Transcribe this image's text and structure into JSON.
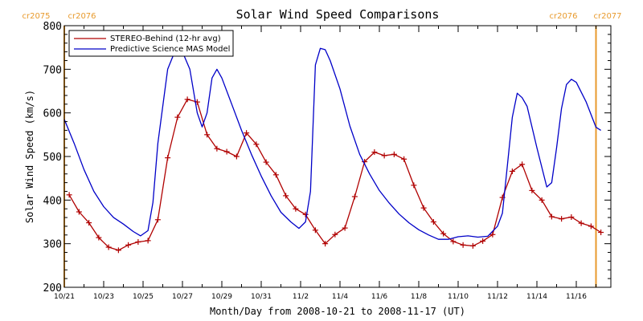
{
  "chart_data": {
    "type": "line",
    "title": "Solar Wind Speed Comparisons",
    "xlabel": "Month/Day from 2008-10-21 to 2008-11-17 (UT)",
    "ylabel": "Solar Wind Speed (km/s)",
    "xlim": [
      "2008-10-21",
      "2008-11-17"
    ],
    "ylim": [
      200,
      800
    ],
    "yticks": [
      200,
      300,
      400,
      500,
      600,
      700,
      800
    ],
    "xtick_labels": [
      "10/21",
      "10/23",
      "10/25",
      "10/27",
      "10/29",
      "10/31",
      "11/2",
      "11/4",
      "11/6",
      "11/8",
      "11/10",
      "11/12",
      "11/14",
      "11/16"
    ],
    "xtick_dates": [
      "2008-10-21",
      "2008-10-23",
      "2008-10-25",
      "2008-10-27",
      "2008-10-29",
      "2008-10-31",
      "2008-11-02",
      "2008-11-04",
      "2008-11-06",
      "2008-11-08",
      "2008-11-10",
      "2008-11-12",
      "2008-11-14",
      "2008-11-16"
    ],
    "grid": false,
    "legend_position": "top-left",
    "carrington_labels": {
      "left": [
        "cr2075",
        "cr2076"
      ],
      "right": [
        "cr2076",
        "cr2077"
      ],
      "left_date": "2008-10-21",
      "right_date": "2008-11-17",
      "color": "#e89a2c"
    },
    "series": [
      {
        "name": "STEREO-Behind (12-hr avg)",
        "color": "#b00000",
        "marker": "plus",
        "x": [
          "2008-10-21 06:00",
          "2008-10-21 18:00",
          "2008-10-22 06:00",
          "2008-10-22 18:00",
          "2008-10-23 06:00",
          "2008-10-23 18:00",
          "2008-10-24 06:00",
          "2008-10-24 18:00",
          "2008-10-25 06:00",
          "2008-10-25 18:00",
          "2008-10-26 06:00",
          "2008-10-26 18:00",
          "2008-10-27 06:00",
          "2008-10-27 18:00",
          "2008-10-28 06:00",
          "2008-10-28 18:00",
          "2008-10-29 06:00",
          "2008-10-29 18:00",
          "2008-10-30 06:00",
          "2008-10-30 18:00",
          "2008-10-31 06:00",
          "2008-10-31 18:00",
          "2008-11-01 06:00",
          "2008-11-01 18:00",
          "2008-11-02 06:00",
          "2008-11-02 18:00",
          "2008-11-03 06:00",
          "2008-11-03 18:00",
          "2008-11-04 06:00",
          "2008-11-04 18:00",
          "2008-11-05 06:00",
          "2008-11-05 18:00",
          "2008-11-06 06:00",
          "2008-11-06 18:00",
          "2008-11-07 06:00",
          "2008-11-07 18:00",
          "2008-11-08 06:00",
          "2008-11-08 18:00",
          "2008-11-09 06:00",
          "2008-11-09 18:00",
          "2008-11-10 06:00",
          "2008-11-10 18:00",
          "2008-11-11 06:00",
          "2008-11-11 18:00",
          "2008-11-12 06:00",
          "2008-11-12 18:00",
          "2008-11-13 06:00",
          "2008-11-13 18:00",
          "2008-11-14 06:00",
          "2008-11-14 18:00",
          "2008-11-15 06:00",
          "2008-11-15 18:00",
          "2008-11-16 06:00",
          "2008-11-16 18:00",
          "2008-11-17 06:00"
        ],
        "y": [
          412,
          373,
          348,
          314,
          292,
          285,
          297,
          304,
          307,
          355,
          497,
          590,
          631,
          625,
          550,
          518,
          511,
          500,
          554,
          528,
          487,
          458,
          410,
          380,
          367,
          331,
          300,
          321,
          336,
          408,
          488,
          510,
          502,
          505,
          494,
          434,
          382,
          350,
          323,
          305,
          297,
          295,
          306,
          321,
          406,
          466,
          482,
          422,
          400,
          362,
          357,
          361,
          347,
          340,
          326
        ]
      },
      {
        "name": "Predictive Science MAS Model",
        "color": "#0000c8",
        "marker": "none",
        "x": [
          "2008-10-21 00:00",
          "2008-10-21 12:00",
          "2008-10-22 00:00",
          "2008-10-22 12:00",
          "2008-10-23 00:00",
          "2008-10-23 12:00",
          "2008-10-24 00:00",
          "2008-10-24 12:00",
          "2008-10-24 21:00",
          "2008-10-25 06:00",
          "2008-10-25 12:00",
          "2008-10-25 18:00",
          "2008-10-26 06:00",
          "2008-10-26 15:00",
          "2008-10-27 00:00",
          "2008-10-27 09:00",
          "2008-10-27 18:00",
          "2008-10-28 00:00",
          "2008-10-28 06:00",
          "2008-10-28 12:00",
          "2008-10-28 18:00",
          "2008-10-29 00:00",
          "2008-10-29 12:00",
          "2008-10-30 00:00",
          "2008-10-30 12:00",
          "2008-10-31 00:00",
          "2008-10-31 12:00",
          "2008-11-01 00:00",
          "2008-11-01 12:00",
          "2008-11-01 22:00",
          "2008-11-02 06:00",
          "2008-11-02 12:00",
          "2008-11-02 18:00",
          "2008-11-03 00:00",
          "2008-11-03 06:00",
          "2008-11-03 12:00",
          "2008-11-04 00:00",
          "2008-11-04 12:00",
          "2008-11-05 00:00",
          "2008-11-05 12:00",
          "2008-11-06 00:00",
          "2008-11-06 12:00",
          "2008-11-07 00:00",
          "2008-11-07 12:00",
          "2008-11-08 00:00",
          "2008-11-08 12:00",
          "2008-11-09 00:00",
          "2008-11-09 12:00",
          "2008-11-10 00:00",
          "2008-11-10 12:00",
          "2008-11-11 00:00",
          "2008-11-11 12:00",
          "2008-11-12 00:00",
          "2008-11-12 06:00",
          "2008-11-12 12:00",
          "2008-11-12 18:00",
          "2008-11-13 00:00",
          "2008-11-13 06:00",
          "2008-11-13 12:00",
          "2008-11-14 00:00",
          "2008-11-14 12:00",
          "2008-11-14 18:00",
          "2008-11-15 00:00",
          "2008-11-15 06:00",
          "2008-11-15 12:00",
          "2008-11-15 18:00",
          "2008-11-16 00:00",
          "2008-11-16 12:00",
          "2008-11-17 00:00",
          "2008-11-17 06:00"
        ],
        "y": [
          585,
          530,
          470,
          420,
          385,
          360,
          345,
          328,
          318,
          330,
          395,
          530,
          700,
          742,
          740,
          700,
          600,
          568,
          600,
          680,
          700,
          680,
          620,
          560,
          505,
          455,
          410,
          372,
          350,
          335,
          350,
          420,
          710,
          748,
          745,
          720,
          655,
          570,
          505,
          460,
          422,
          393,
          368,
          348,
          332,
          320,
          310,
          310,
          316,
          318,
          315,
          317,
          340,
          370,
          480,
          590,
          645,
          635,
          615,
          520,
          430,
          440,
          520,
          610,
          665,
          677,
          670,
          625,
          567,
          560
        ]
      }
    ]
  }
}
